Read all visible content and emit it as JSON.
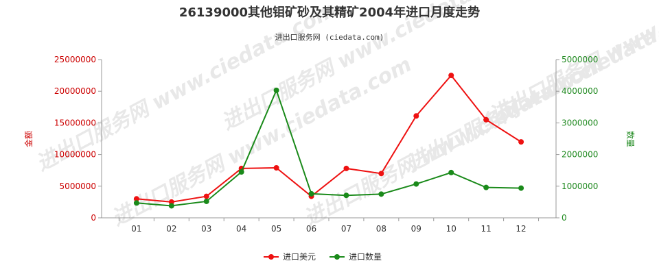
{
  "chart_data": {
    "type": "line",
    "title": "26139000其他钼矿砂及其精矿2004年进口月度走势",
    "subtitle": "进出口服务网 (ciedata.com)",
    "watermark": "进出口服务网 www.ciedata.com",
    "categories": [
      "01",
      "02",
      "03",
      "04",
      "05",
      "06",
      "07",
      "08",
      "09",
      "10",
      "11",
      "12"
    ],
    "left_axis": {
      "label": "金额",
      "ylim": [
        0,
        25000000
      ],
      "ticks": [
        "0",
        "5000000",
        "10000000",
        "15000000",
        "20000000",
        "25000000"
      ],
      "tick_values": [
        0,
        5000000,
        10000000,
        15000000,
        20000000,
        25000000
      ],
      "color": "#cc0000"
    },
    "right_axis": {
      "label": "数量",
      "ylim": [
        0,
        5000000
      ],
      "ticks": [
        "0",
        "1000000",
        "2000000",
        "3000000",
        "4000000",
        "5000000"
      ],
      "tick_values": [
        0,
        1000000,
        2000000,
        3000000,
        4000000,
        5000000
      ],
      "color": "#228b22"
    },
    "series": [
      {
        "name": "进口美元",
        "axis": "left",
        "color": "#ee1111",
        "values": [
          3000000,
          2500000,
          3400000,
          7800000,
          7900000,
          3400000,
          7800000,
          7000000,
          16100000,
          22500000,
          15500000,
          12000000
        ]
      },
      {
        "name": "进口数量",
        "axis": "right",
        "color": "#1a8a1a",
        "values": [
          470000,
          380000,
          520000,
          1450000,
          4030000,
          760000,
          710000,
          750000,
          1070000,
          1430000,
          960000,
          940000
        ]
      }
    ],
    "legend_position": "bottom-center",
    "grid": false
  }
}
